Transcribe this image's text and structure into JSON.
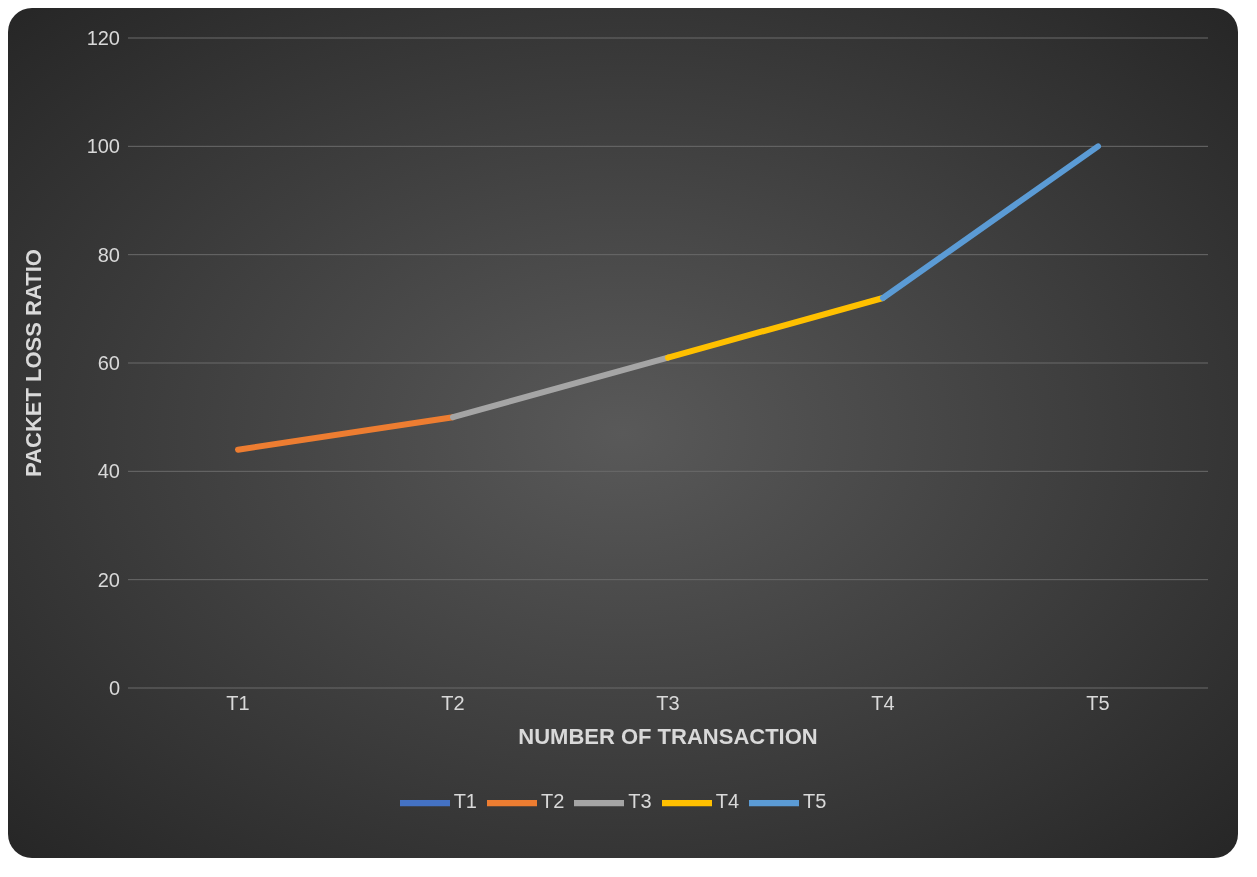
{
  "chart_data": {
    "type": "line",
    "xlabel": "NUMBER OF TRANSACTION",
    "ylabel": "PACKET LOSS RATIO",
    "categories": [
      "T1",
      "T2",
      "T3",
      "T4",
      "T5"
    ],
    "series": [
      {
        "name": "T1",
        "color": "#4472c4",
        "values": [
          null,
          null,
          null,
          null,
          null
        ]
      },
      {
        "name": "T2",
        "color": "#ed7d31",
        "values": [
          44,
          50,
          null,
          null,
          null
        ]
      },
      {
        "name": "T3",
        "color": "#a5a5a5",
        "values": [
          null,
          50,
          61,
          null,
          null
        ]
      },
      {
        "name": "T4",
        "color": "#ffc000",
        "values": [
          null,
          null,
          61,
          72,
          null
        ]
      },
      {
        "name": "T5",
        "color": "#5b9bd5",
        "values": [
          null,
          null,
          null,
          72,
          100
        ]
      }
    ],
    "ylim": [
      0,
      120
    ],
    "yticks": [
      0,
      20,
      40,
      60,
      80,
      100,
      120
    ],
    "grid": "y",
    "legend": "bottom",
    "marker": "none",
    "line_style": "solid"
  }
}
